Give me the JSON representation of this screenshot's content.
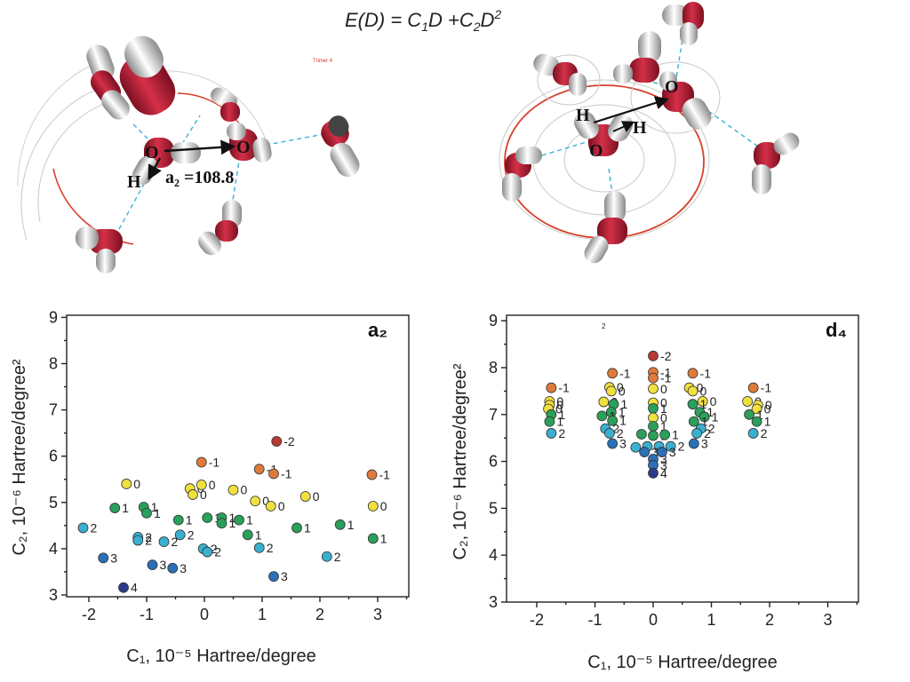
{
  "header": {
    "equation_parts": [
      "E(D) = C",
      "1",
      "D +C",
      "2",
      "D",
      "2"
    ]
  },
  "molecules": {
    "left": {
      "atom_labels": [
        "O",
        "O",
        "H"
      ],
      "angle_label": "a₂ =108.8",
      "tiny_label": "Trimer 4"
    },
    "right": {
      "atom_labels": [
        "O",
        "H",
        "H",
        "O"
      ]
    }
  },
  "colors": {
    "-2": "#b83a32",
    "-1": "#e07a3a",
    "0": "#f0e040",
    "1": "#2aa05a",
    "2": "#3ab0d0",
    "3": "#2a70b8",
    "4": "#2a3a8a",
    "axis": "#222222"
  },
  "chart_data": [
    {
      "type": "scatter",
      "panel_label": "a₂",
      "xlabel": "C₁, 10⁻⁵ Hartree/degree",
      "ylabel": "C₂, 10⁻⁶ Hartree/degree²",
      "xlim": [
        -2.5,
        3.5
      ],
      "ylim": [
        3,
        9
      ],
      "xticks": [
        "-2",
        "-1",
        "0",
        "1",
        "2",
        "3"
      ],
      "yticks": [
        "3",
        "4",
        "5",
        "6",
        "7",
        "8",
        "9"
      ],
      "grid": false,
      "points": [
        {
          "x": 1.25,
          "y": 6.32,
          "label": "-2"
        },
        {
          "x": -0.05,
          "y": 5.87,
          "label": "-1"
        },
        {
          "x": 0.95,
          "y": 5.72,
          "label": "-1"
        },
        {
          "x": 1.2,
          "y": 5.62,
          "label": "-1"
        },
        {
          "x": 2.9,
          "y": 5.6,
          "label": "-1"
        },
        {
          "x": -1.35,
          "y": 5.4,
          "label": "0"
        },
        {
          "x": -0.25,
          "y": 5.3,
          "label": "0"
        },
        {
          "x": -0.05,
          "y": 5.38,
          "label": "0"
        },
        {
          "x": -0.2,
          "y": 5.17,
          "label": "0"
        },
        {
          "x": 0.5,
          "y": 5.27,
          "label": "0"
        },
        {
          "x": 0.88,
          "y": 5.03,
          "label": "0"
        },
        {
          "x": 1.15,
          "y": 4.92,
          "label": "0"
        },
        {
          "x": 1.75,
          "y": 5.13,
          "label": "0"
        },
        {
          "x": 2.92,
          "y": 4.92,
          "label": "0"
        },
        {
          "x": -1.55,
          "y": 4.88,
          "label": "1"
        },
        {
          "x": -1.05,
          "y": 4.9,
          "label": "1"
        },
        {
          "x": -1.0,
          "y": 4.77,
          "label": "1"
        },
        {
          "x": -0.45,
          "y": 4.62,
          "label": "1"
        },
        {
          "x": 0.05,
          "y": 4.67,
          "label": "1"
        },
        {
          "x": 0.3,
          "y": 4.67,
          "label": "1"
        },
        {
          "x": 0.3,
          "y": 4.55,
          "label": "1"
        },
        {
          "x": 0.6,
          "y": 4.62,
          "label": "1"
        },
        {
          "x": 0.75,
          "y": 4.3,
          "label": "1"
        },
        {
          "x": 1.6,
          "y": 4.45,
          "label": "1"
        },
        {
          "x": 2.35,
          "y": 4.52,
          "label": "1"
        },
        {
          "x": 2.92,
          "y": 4.22,
          "label": "1"
        },
        {
          "x": -2.1,
          "y": 4.45,
          "label": "2"
        },
        {
          "x": -1.15,
          "y": 4.25,
          "label": "2"
        },
        {
          "x": -1.15,
          "y": 4.18,
          "label": "2"
        },
        {
          "x": -0.7,
          "y": 4.15,
          "label": "2"
        },
        {
          "x": -0.42,
          "y": 4.3,
          "label": "2"
        },
        {
          "x": -0.02,
          "y": 4.0,
          "label": "2"
        },
        {
          "x": 0.05,
          "y": 3.93,
          "label": "2"
        },
        {
          "x": 0.95,
          "y": 4.02,
          "label": "2"
        },
        {
          "x": 2.12,
          "y": 3.83,
          "label": "2"
        },
        {
          "x": -1.75,
          "y": 3.8,
          "label": "3"
        },
        {
          "x": -0.9,
          "y": 3.65,
          "label": "3"
        },
        {
          "x": -0.55,
          "y": 3.58,
          "label": "3"
        },
        {
          "x": 1.2,
          "y": 3.4,
          "label": "3"
        },
        {
          "x": -1.4,
          "y": 3.16,
          "label": "4"
        }
      ]
    },
    {
      "type": "scatter",
      "panel_label": "d₄",
      "xlabel": "C₁, 10⁻⁵ Hartree/degree",
      "ylabel": "C₂, 10⁻⁶ Hartree/degree²",
      "xlim": [
        -2.5,
        3.5
      ],
      "ylim": [
        3,
        9
      ],
      "xticks": [
        "-2",
        "-1",
        "0",
        "1",
        "2",
        "3"
      ],
      "yticks": [
        "3",
        "4",
        "5",
        "6",
        "7",
        "8",
        "9"
      ],
      "grid": false,
      "top_note": "2",
      "points": [
        {
          "x": -1.75,
          "y": 7.57,
          "label": "-1"
        },
        {
          "x": -1.78,
          "y": 7.28,
          "label": "0"
        },
        {
          "x": -1.78,
          "y": 7.2,
          "label": "0"
        },
        {
          "x": -1.8,
          "y": 7.12,
          "label": "0"
        },
        {
          "x": -1.75,
          "y": 7.0,
          "label": "1"
        },
        {
          "x": -1.78,
          "y": 6.85,
          "label": "1"
        },
        {
          "x": -1.75,
          "y": 6.6,
          "label": "2"
        },
        {
          "x": -0.7,
          "y": 7.88,
          "label": "-1"
        },
        {
          "x": -0.75,
          "y": 7.58,
          "label": "0"
        },
        {
          "x": -0.72,
          "y": 7.5,
          "label": "0"
        },
        {
          "x": -0.85,
          "y": 7.27,
          "label": "0"
        },
        {
          "x": -0.68,
          "y": 7.22,
          "label": "1"
        },
        {
          "x": -0.72,
          "y": 7.05,
          "label": "1"
        },
        {
          "x": -0.88,
          "y": 6.97,
          "label": "1"
        },
        {
          "x": -0.7,
          "y": 6.87,
          "label": "1"
        },
        {
          "x": -0.82,
          "y": 6.7,
          "label": "2"
        },
        {
          "x": -0.75,
          "y": 6.6,
          "label": "2"
        },
        {
          "x": -0.7,
          "y": 6.38,
          "label": "3"
        },
        {
          "x": 0.0,
          "y": 8.25,
          "label": "-2"
        },
        {
          "x": 0.0,
          "y": 7.9,
          "label": "-1"
        },
        {
          "x": 0.0,
          "y": 7.78,
          "label": "-1"
        },
        {
          "x": 0.0,
          "y": 7.55,
          "label": "0"
        },
        {
          "x": 0.0,
          "y": 7.25,
          "label": "0"
        },
        {
          "x": 0.0,
          "y": 7.13,
          "label": "1"
        },
        {
          "x": 0.0,
          "y": 6.93,
          "label": "0"
        },
        {
          "x": 0.0,
          "y": 6.75,
          "label": "1"
        },
        {
          "x": -0.2,
          "y": 6.58,
          "label": "1"
        },
        {
          "x": 0.0,
          "y": 6.55,
          "label": "1"
        },
        {
          "x": 0.2,
          "y": 6.57,
          "label": "1"
        },
        {
          "x": -0.3,
          "y": 6.3,
          "label": "2"
        },
        {
          "x": -0.1,
          "y": 6.32,
          "label": "2"
        },
        {
          "x": 0.1,
          "y": 6.32,
          "label": "2"
        },
        {
          "x": 0.3,
          "y": 6.32,
          "label": "2"
        },
        {
          "x": -0.15,
          "y": 6.2,
          "label": "3"
        },
        {
          "x": 0.0,
          "y": 6.05,
          "label": "3"
        },
        {
          "x": 0.15,
          "y": 6.2,
          "label": "3"
        },
        {
          "x": 0.0,
          "y": 5.92,
          "label": "3"
        },
        {
          "x": 0.0,
          "y": 5.75,
          "label": "4"
        },
        {
          "x": 0.68,
          "y": 7.88,
          "label": "-1"
        },
        {
          "x": 0.62,
          "y": 7.57,
          "label": "0"
        },
        {
          "x": 0.68,
          "y": 7.5,
          "label": "0"
        },
        {
          "x": 0.85,
          "y": 7.28,
          "label": "0"
        },
        {
          "x": 0.68,
          "y": 7.22,
          "label": "1"
        },
        {
          "x": 0.8,
          "y": 7.05,
          "label": "1"
        },
        {
          "x": 0.88,
          "y": 6.95,
          "label": "1"
        },
        {
          "x": 0.7,
          "y": 6.85,
          "label": "1"
        },
        {
          "x": 0.82,
          "y": 6.7,
          "label": "2"
        },
        {
          "x": 0.75,
          "y": 6.6,
          "label": "2"
        },
        {
          "x": 0.7,
          "y": 6.38,
          "label": "3"
        },
        {
          "x": 1.72,
          "y": 7.57,
          "label": "-1"
        },
        {
          "x": 1.62,
          "y": 7.28,
          "label": "0"
        },
        {
          "x": 1.8,
          "y": 7.2,
          "label": "0"
        },
        {
          "x": 1.78,
          "y": 7.12,
          "label": "0"
        },
        {
          "x": 1.65,
          "y": 7.0,
          "label": "1"
        },
        {
          "x": 1.78,
          "y": 6.85,
          "label": "1"
        },
        {
          "x": 1.72,
          "y": 6.6,
          "label": "2"
        }
      ]
    }
  ]
}
